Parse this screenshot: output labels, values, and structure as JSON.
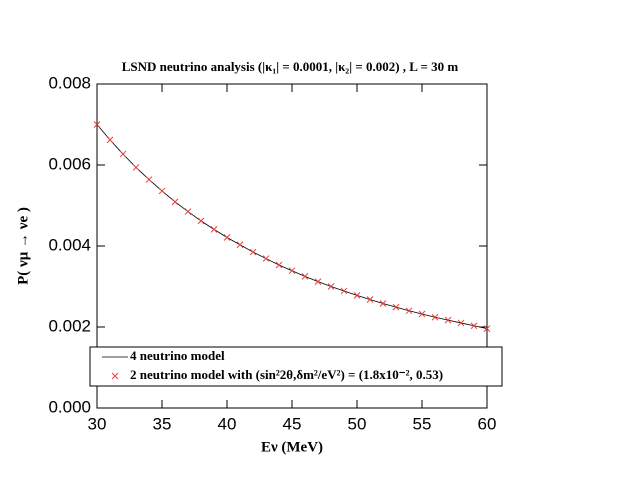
{
  "chart_data": {
    "type": "line",
    "title": "LSND neutrino analysis (|κ₁| = 0.0001, |κ₂| = 0.002) ,   L = 30 m",
    "x_label": "Eν (MeV)",
    "y_label": "P( νμ → νe )",
    "x": [
      30,
      31,
      32,
      33,
      34,
      35,
      36,
      37,
      38,
      39,
      40,
      41,
      42,
      43,
      44,
      45,
      46,
      47,
      48,
      49,
      50,
      51,
      52,
      53,
      54,
      55,
      56,
      57,
      58,
      59,
      60
    ],
    "series": [
      {
        "name": "4 neutrino model",
        "color": "#000000",
        "mode": "line",
        "values": [
          0.007,
          0.00662,
          0.00627,
          0.00594,
          0.00564,
          0.00536,
          0.00509,
          0.00485,
          0.00462,
          0.00441,
          0.00421,
          0.00403,
          0.00385,
          0.00369,
          0.00353,
          0.00339,
          0.00325,
          0.00312,
          0.003,
          0.00289,
          0.00278,
          0.00268,
          0.00258,
          0.00249,
          0.0024,
          0.00232,
          0.00224,
          0.00217,
          0.0021,
          0.00203,
          0.00196
        ]
      },
      {
        "name": "2 neutrino model with (sin²2θ,δm²/eV²) = (1.8x10⁻², 0.53)",
        "color": "#e8403a",
        "mode": "markers",
        "values": [
          0.007,
          0.00662,
          0.00627,
          0.00594,
          0.00564,
          0.00536,
          0.00509,
          0.00485,
          0.00462,
          0.00441,
          0.00421,
          0.00403,
          0.00385,
          0.00369,
          0.00353,
          0.00339,
          0.00325,
          0.00312,
          0.003,
          0.00289,
          0.00278,
          0.00268,
          0.00258,
          0.00249,
          0.0024,
          0.00232,
          0.00224,
          0.00217,
          0.0021,
          0.00203,
          0.00196
        ]
      }
    ],
    "xlim": [
      30,
      60
    ],
    "xticks": [
      30,
      35,
      40,
      45,
      50,
      55,
      60
    ],
    "ylim": [
      0,
      0.008
    ],
    "yticks": [
      {
        "value": 0,
        "label": "0.000"
      },
      {
        "value": 0.002,
        "label": "0.002"
      },
      {
        "value": 0.004,
        "label": "0.004"
      },
      {
        "value": 0.006,
        "label": "0.006"
      },
      {
        "value": 0.008,
        "label": "0.008"
      }
    ],
    "legend": "lower left",
    "grid": false
  }
}
